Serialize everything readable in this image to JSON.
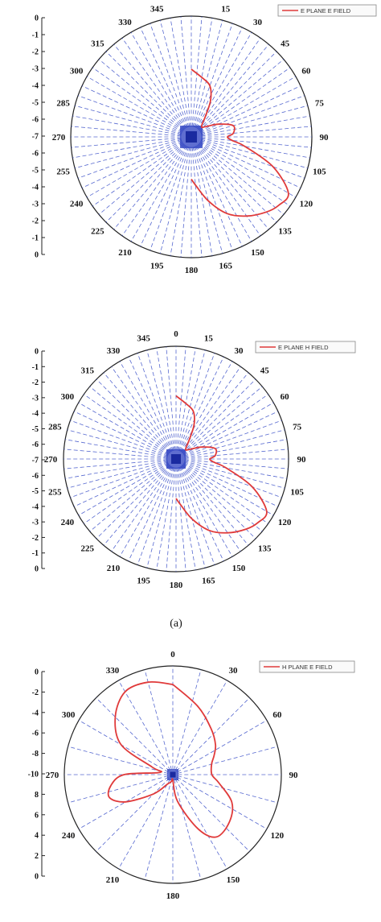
{
  "caption": "(a)",
  "chart_data": [
    {
      "type": "polar",
      "legend": "E PLANE E FIELD",
      "legend_placement": "top-right",
      "angle_labels": [
        "345",
        "15",
        "330",
        "30",
        "315",
        "45",
        "300",
        "60",
        "285",
        "75",
        "270",
        "90",
        "255",
        "105",
        "240",
        "120",
        "225",
        "135",
        "210",
        "150",
        "195",
        "180",
        "165"
      ],
      "radial_ticks": [
        "0",
        "-1",
        "-2",
        "-3",
        "-4",
        "-5",
        "-6",
        "-7",
        "-6",
        "-5",
        "-4",
        "-3",
        "-2",
        "-1",
        "0"
      ],
      "grid": true,
      "series": [
        {
          "color": "#e03a3a",
          "theta_deg": [
            0,
            10,
            20,
            28,
            35,
            45,
            55,
            65,
            75,
            85,
            90,
            95,
            100,
            110,
            120,
            128,
            135,
            145,
            155,
            165,
            175,
            180
          ],
          "r_norm": [
            0.56,
            0.5,
            0.45,
            0.34,
            0.2,
            0.12,
            0.15,
            0.25,
            0.36,
            0.35,
            0.3,
            0.34,
            0.45,
            0.72,
            0.93,
            0.92,
            0.88,
            0.8,
            0.7,
            0.55,
            0.4,
            0.35
          ]
        }
      ]
    },
    {
      "type": "polar",
      "legend": "E PLANE H FIELD",
      "legend_placement": "top-right",
      "angle_labels": [
        "0",
        "345",
        "15",
        "330",
        "30",
        "315",
        "45",
        "300",
        "60",
        "285",
        "75",
        "270",
        "90",
        "255",
        "105",
        "240",
        "120",
        "225",
        "135",
        "210",
        "150",
        "195",
        "180",
        "165"
      ],
      "radial_ticks": [
        "0",
        "-1",
        "-2",
        "-3",
        "-4",
        "-5",
        "-6",
        "-7",
        "-6",
        "-5",
        "-4",
        "-3",
        "-2",
        "-1",
        "0"
      ],
      "grid": true,
      "series": [
        {
          "color": "#e03a3a",
          "theta_deg": [
            0,
            10,
            20,
            28,
            35,
            45,
            55,
            65,
            75,
            85,
            90,
            95,
            100,
            110,
            120,
            128,
            135,
            145,
            155,
            165,
            175,
            180
          ],
          "r_norm": [
            0.56,
            0.5,
            0.45,
            0.34,
            0.2,
            0.12,
            0.15,
            0.25,
            0.36,
            0.35,
            0.3,
            0.34,
            0.45,
            0.72,
            0.93,
            0.92,
            0.88,
            0.8,
            0.7,
            0.55,
            0.4,
            0.35
          ]
        }
      ]
    },
    {
      "type": "polar",
      "legend": "H PLANE  E FIELD",
      "legend_placement": "top-right",
      "angle_labels": [
        "0",
        "330",
        "30",
        "300",
        "60",
        "270",
        "90",
        "240",
        "120",
        "210",
        "150",
        "180"
      ],
      "radial_ticks": [
        "0",
        "-2",
        "-4",
        "-6",
        "-8",
        "-10",
        "8",
        "6",
        "4",
        "2",
        "0"
      ],
      "grid": true,
      "series": [
        {
          "color": "#e03a3a",
          "theta_deg": [
            0,
            20,
            40,
            55,
            65,
            75,
            90,
            100,
            115,
            130,
            145,
            155,
            170,
            180,
            190,
            200,
            210,
            225,
            240,
            250,
            260,
            270,
            280,
            290,
            300,
            315,
            330,
            345,
            360
          ],
          "r_norm": [
            0.83,
            0.67,
            0.55,
            0.48,
            0.42,
            0.37,
            0.36,
            0.43,
            0.6,
            0.68,
            0.7,
            0.55,
            0.25,
            0.05,
            0.06,
            0.08,
            0.1,
            0.25,
            0.5,
            0.62,
            0.58,
            0.45,
            0.12,
            0.2,
            0.55,
            0.75,
            0.88,
            0.88,
            0.83
          ]
        }
      ]
    }
  ]
}
